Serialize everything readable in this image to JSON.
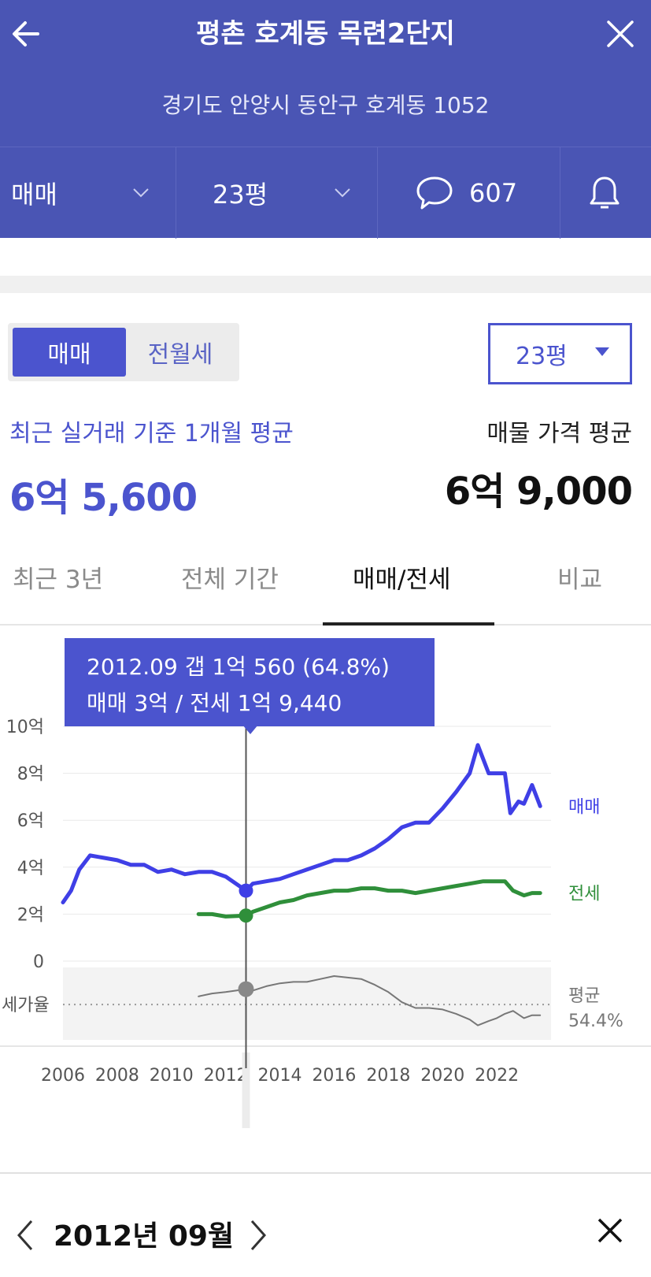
{
  "header": {
    "title": "평촌 호계동 목련2단지",
    "address": "경기도 안양시 동안구 호계동 1052"
  },
  "filters": {
    "deal_type": "매매",
    "size": "23평",
    "comment_count": "607"
  },
  "toggle": {
    "sale_label": "매매",
    "lease_label": "전월세"
  },
  "size_select": {
    "value": "23평"
  },
  "summary": {
    "recent_label": "최근 실거래 기준 1개월 평균",
    "recent_value": "6억 5,600",
    "listing_label": "매물 가격 평균",
    "listing_value": "6억 9,000"
  },
  "tabs": [
    {
      "label": "최근 3년"
    },
    {
      "label": "전체 기간"
    },
    {
      "label": "매매/전세",
      "active": true
    },
    {
      "label": "비교"
    }
  ],
  "tooltip": {
    "line1": "2012.09  갭 1억 560 (64.8%)",
    "line2": "매매 3억 / 전세 1억 9,440"
  },
  "chart_data": {
    "type": "line",
    "y_ticks": [
      "10억",
      "8억",
      "6억",
      "4억",
      "2억",
      "0"
    ],
    "y_unit": "억",
    "ylim": [
      0,
      10
    ],
    "x_ticks": [
      "2006",
      "2008",
      "2010",
      "2012",
      "2014",
      "2016",
      "2018",
      "2020",
      "2022"
    ],
    "xlim": [
      2006,
      2024
    ],
    "series": [
      {
        "name": "매매",
        "color": "#3f3fe6",
        "points": [
          [
            2006.0,
            2.5
          ],
          [
            2006.3,
            3.0
          ],
          [
            2006.6,
            3.9
          ],
          [
            2007.0,
            4.5
          ],
          [
            2007.5,
            4.4
          ],
          [
            2008.0,
            4.3
          ],
          [
            2008.5,
            4.1
          ],
          [
            2009.0,
            4.1
          ],
          [
            2009.5,
            3.8
          ],
          [
            2010.0,
            3.9
          ],
          [
            2010.5,
            3.7
          ],
          [
            2011.0,
            3.8
          ],
          [
            2011.5,
            3.8
          ],
          [
            2012.0,
            3.6
          ],
          [
            2012.5,
            3.2
          ],
          [
            2012.75,
            3.0
          ],
          [
            2013.0,
            3.3
          ],
          [
            2013.5,
            3.4
          ],
          [
            2014.0,
            3.5
          ],
          [
            2014.5,
            3.7
          ],
          [
            2015.0,
            3.9
          ],
          [
            2015.5,
            4.1
          ],
          [
            2016.0,
            4.3
          ],
          [
            2016.5,
            4.3
          ],
          [
            2017.0,
            4.5
          ],
          [
            2017.5,
            4.8
          ],
          [
            2018.0,
            5.2
          ],
          [
            2018.5,
            5.7
          ],
          [
            2019.0,
            5.9
          ],
          [
            2019.5,
            5.9
          ],
          [
            2020.0,
            6.5
          ],
          [
            2020.5,
            7.2
          ],
          [
            2021.0,
            8.0
          ],
          [
            2021.3,
            9.2
          ],
          [
            2021.7,
            8.0
          ],
          [
            2022.0,
            8.0
          ],
          [
            2022.3,
            8.0
          ],
          [
            2022.5,
            6.3
          ],
          [
            2022.8,
            6.8
          ],
          [
            2023.0,
            6.7
          ],
          [
            2023.3,
            7.5
          ],
          [
            2023.6,
            6.6
          ]
        ]
      },
      {
        "name": "전세",
        "color": "#2f8f3a",
        "points": [
          [
            2011.0,
            2.0
          ],
          [
            2011.5,
            2.0
          ],
          [
            2012.0,
            1.9
          ],
          [
            2012.75,
            1.94
          ],
          [
            2013.0,
            2.1
          ],
          [
            2013.5,
            2.3
          ],
          [
            2014.0,
            2.5
          ],
          [
            2014.5,
            2.6
          ],
          [
            2015.0,
            2.8
          ],
          [
            2015.5,
            2.9
          ],
          [
            2016.0,
            3.0
          ],
          [
            2016.5,
            3.0
          ],
          [
            2017.0,
            3.1
          ],
          [
            2017.5,
            3.1
          ],
          [
            2018.0,
            3.0
          ],
          [
            2018.5,
            3.0
          ],
          [
            2019.0,
            2.9
          ],
          [
            2019.5,
            3.0
          ],
          [
            2020.0,
            3.1
          ],
          [
            2020.5,
            3.2
          ],
          [
            2021.0,
            3.3
          ],
          [
            2021.5,
            3.4
          ],
          [
            2022.0,
            3.4
          ],
          [
            2022.3,
            3.4
          ],
          [
            2022.6,
            3.0
          ],
          [
            2023.0,
            2.8
          ],
          [
            2023.3,
            2.9
          ],
          [
            2023.6,
            2.9
          ]
        ]
      },
      {
        "name": "전세가율",
        "color": "#777777",
        "points": [
          [
            2011.0,
            60
          ],
          [
            2011.5,
            62
          ],
          [
            2012.0,
            63
          ],
          [
            2012.75,
            65
          ],
          [
            2013.0,
            64
          ],
          [
            2013.5,
            67
          ],
          [
            2014.0,
            69
          ],
          [
            2014.5,
            70
          ],
          [
            2015.0,
            70
          ],
          [
            2015.5,
            72
          ],
          [
            2016.0,
            74
          ],
          [
            2016.5,
            73
          ],
          [
            2017.0,
            72
          ],
          [
            2017.5,
            68
          ],
          [
            2018.0,
            63
          ],
          [
            2018.5,
            56
          ],
          [
            2019.0,
            52
          ],
          [
            2019.5,
            52
          ],
          [
            2020.0,
            51
          ],
          [
            2020.5,
            48
          ],
          [
            2021.0,
            44
          ],
          [
            2021.3,
            40
          ],
          [
            2021.7,
            43
          ],
          [
            2022.0,
            45
          ],
          [
            2022.3,
            48
          ],
          [
            2022.6,
            50
          ],
          [
            2023.0,
            45
          ],
          [
            2023.3,
            47
          ],
          [
            2023.6,
            47
          ]
        ]
      }
    ],
    "ratio_label": "세가율",
    "avg_label": "평균",
    "avg_value": "54.4%",
    "avg_ratio": 54.4,
    "selected_x": 2012.75
  },
  "bottom": {
    "date": "2012년 09월"
  }
}
